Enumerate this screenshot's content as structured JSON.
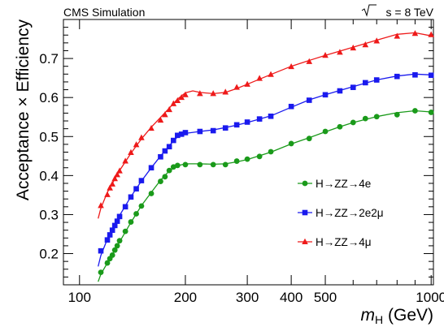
{
  "chart_data": {
    "type": "line",
    "header_left": "CMS Simulation",
    "header_right": {
      "sqrt": "s",
      "rest": " = 8 TeV"
    },
    "xlabel": {
      "var": "m",
      "sub": "H",
      "unit": " (GeV)"
    },
    "ylabel": "Acceptance × Efficiency",
    "x_scale": "log",
    "xlim": [
      90,
      1015
    ],
    "ylim": [
      0.12,
      0.8
    ],
    "x_ticks": [
      100,
      200,
      300,
      400,
      500,
      1000
    ],
    "y_ticks": [
      0.2,
      0.3,
      0.4,
      0.5,
      0.6,
      0.7
    ],
    "grid": false,
    "legend_position": "center-right",
    "series": [
      {
        "name": "H→ZZ→4e",
        "marker": "circle",
        "color": "#1a9a1a",
        "points": [
          [
            115,
            0.152
          ],
          [
            120,
            0.176
          ],
          [
            122,
            0.187
          ],
          [
            124,
            0.196
          ],
          [
            126,
            0.209
          ],
          [
            128,
            0.22
          ],
          [
            130,
            0.233
          ],
          [
            135,
            0.257
          ],
          [
            140,
            0.281
          ],
          [
            145,
            0.302
          ],
          [
            150,
            0.322
          ],
          [
            160,
            0.354
          ],
          [
            170,
            0.385
          ],
          [
            175,
            0.397
          ],
          [
            180,
            0.413
          ],
          [
            185,
            0.422
          ],
          [
            190,
            0.426
          ],
          [
            200,
            0.428
          ],
          [
            220,
            0.428
          ],
          [
            240,
            0.428
          ],
          [
            260,
            0.428
          ],
          [
            280,
            0.437
          ],
          [
            300,
            0.442
          ],
          [
            325,
            0.449
          ],
          [
            350,
            0.461
          ],
          [
            400,
            0.482
          ],
          [
            450,
            0.495
          ],
          [
            500,
            0.513
          ],
          [
            550,
            0.525
          ],
          [
            600,
            0.536
          ],
          [
            650,
            0.546
          ],
          [
            700,
            0.551
          ],
          [
            800,
            0.556
          ],
          [
            900,
            0.566
          ],
          [
            1000,
            0.562
          ]
        ],
        "curve": [
          [
            113,
            0.128
          ],
          [
            115,
            0.147
          ],
          [
            120,
            0.176
          ],
          [
            130,
            0.23
          ],
          [
            140,
            0.28
          ],
          [
            150,
            0.323
          ],
          [
            160,
            0.357
          ],
          [
            170,
            0.388
          ],
          [
            180,
            0.412
          ],
          [
            190,
            0.425
          ],
          [
            200,
            0.43
          ],
          [
            220,
            0.43
          ],
          [
            240,
            0.429
          ],
          [
            260,
            0.43
          ],
          [
            280,
            0.435
          ],
          [
            300,
            0.441
          ],
          [
            350,
            0.46
          ],
          [
            400,
            0.481
          ],
          [
            450,
            0.497
          ],
          [
            500,
            0.512
          ],
          [
            550,
            0.525
          ],
          [
            600,
            0.536
          ],
          [
            700,
            0.551
          ],
          [
            800,
            0.561
          ],
          [
            900,
            0.566
          ],
          [
            1000,
            0.563
          ]
        ]
      },
      {
        "name": "H→ZZ→2e2μ",
        "marker": "square",
        "color": "#1a1aee",
        "points": [
          [
            115,
            0.207
          ],
          [
            120,
            0.235
          ],
          [
            122,
            0.248
          ],
          [
            124,
            0.26
          ],
          [
            126,
            0.272
          ],
          [
            128,
            0.283
          ],
          [
            130,
            0.295
          ],
          [
            135,
            0.32
          ],
          [
            140,
            0.345
          ],
          [
            145,
            0.366
          ],
          [
            150,
            0.387
          ],
          [
            160,
            0.42
          ],
          [
            170,
            0.448
          ],
          [
            175,
            0.463
          ],
          [
            180,
            0.474
          ],
          [
            185,
            0.49
          ],
          [
            190,
            0.503
          ],
          [
            195,
            0.506
          ],
          [
            200,
            0.51
          ],
          [
            220,
            0.513
          ],
          [
            240,
            0.515
          ],
          [
            260,
            0.522
          ],
          [
            280,
            0.53
          ],
          [
            300,
            0.537
          ],
          [
            325,
            0.545
          ],
          [
            350,
            0.552
          ],
          [
            400,
            0.577
          ],
          [
            450,
            0.593
          ],
          [
            500,
            0.607
          ],
          [
            550,
            0.617
          ],
          [
            600,
            0.626
          ],
          [
            650,
            0.638
          ],
          [
            700,
            0.645
          ],
          [
            800,
            0.654
          ],
          [
            900,
            0.658
          ],
          [
            1000,
            0.657
          ]
        ],
        "curve": [
          [
            113,
            0.167
          ],
          [
            115,
            0.195
          ],
          [
            120,
            0.237
          ],
          [
            130,
            0.298
          ],
          [
            140,
            0.346
          ],
          [
            150,
            0.386
          ],
          [
            160,
            0.42
          ],
          [
            170,
            0.45
          ],
          [
            180,
            0.477
          ],
          [
            190,
            0.499
          ],
          [
            200,
            0.508
          ],
          [
            220,
            0.513
          ],
          [
            240,
            0.517
          ],
          [
            260,
            0.523
          ],
          [
            280,
            0.529
          ],
          [
            300,
            0.536
          ],
          [
            350,
            0.553
          ],
          [
            400,
            0.575
          ],
          [
            450,
            0.594
          ],
          [
            500,
            0.607
          ],
          [
            550,
            0.618
          ],
          [
            600,
            0.628
          ],
          [
            700,
            0.645
          ],
          [
            800,
            0.655
          ],
          [
            900,
            0.66
          ],
          [
            1000,
            0.658
          ]
        ]
      },
      {
        "name": "H→ZZ→4μ",
        "marker": "triangle",
        "color": "#ee1a1a",
        "points": [
          [
            115,
            0.323
          ],
          [
            120,
            0.351
          ],
          [
            122,
            0.368
          ],
          [
            124,
            0.378
          ],
          [
            126,
            0.392
          ],
          [
            128,
            0.402
          ],
          [
            130,
            0.412
          ],
          [
            135,
            0.437
          ],
          [
            140,
            0.459
          ],
          [
            145,
            0.479
          ],
          [
            150,
            0.497
          ],
          [
            160,
            0.521
          ],
          [
            170,
            0.542
          ],
          [
            175,
            0.556
          ],
          [
            180,
            0.569
          ],
          [
            185,
            0.584
          ],
          [
            190,
            0.592
          ],
          [
            195,
            0.6
          ],
          [
            200,
            0.607
          ],
          [
            220,
            0.61
          ],
          [
            240,
            0.61
          ],
          [
            260,
            0.614
          ],
          [
            280,
            0.626
          ],
          [
            300,
            0.634
          ],
          [
            325,
            0.649
          ],
          [
            350,
            0.659
          ],
          [
            400,
            0.679
          ],
          [
            450,
            0.692
          ],
          [
            500,
            0.708
          ],
          [
            550,
            0.716
          ],
          [
            600,
            0.727
          ],
          [
            650,
            0.735
          ],
          [
            700,
            0.745
          ],
          [
            800,
            0.757
          ],
          [
            900,
            0.764
          ],
          [
            1000,
            0.761
          ]
        ],
        "curve": [
          [
            113,
            0.29
          ],
          [
            115,
            0.316
          ],
          [
            120,
            0.357
          ],
          [
            130,
            0.413
          ],
          [
            140,
            0.457
          ],
          [
            150,
            0.494
          ],
          [
            160,
            0.524
          ],
          [
            170,
            0.549
          ],
          [
            180,
            0.573
          ],
          [
            190,
            0.596
          ],
          [
            200,
            0.612
          ],
          [
            210,
            0.617
          ],
          [
            220,
            0.613
          ],
          [
            240,
            0.61
          ],
          [
            260,
            0.613
          ],
          [
            280,
            0.623
          ],
          [
            300,
            0.634
          ],
          [
            350,
            0.659
          ],
          [
            400,
            0.68
          ],
          [
            450,
            0.695
          ],
          [
            500,
            0.708
          ],
          [
            550,
            0.719
          ],
          [
            600,
            0.729
          ],
          [
            700,
            0.747
          ],
          [
            800,
            0.762
          ],
          [
            900,
            0.766
          ],
          [
            1000,
            0.758
          ]
        ]
      }
    ]
  }
}
